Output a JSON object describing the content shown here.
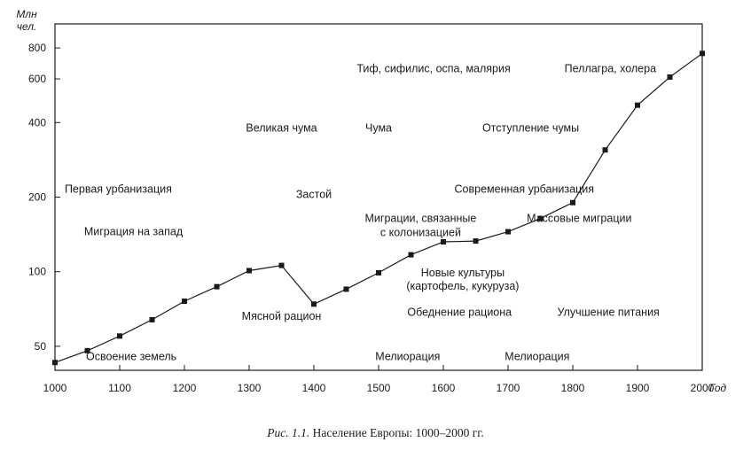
{
  "chart_data": {
    "type": "line",
    "title": "",
    "caption": {
      "label": "Рис. 1.1.",
      "text": "Население Европы: 1000–2000 гг."
    },
    "ylabel": "Млн\nчел.",
    "xlabel": "Год",
    "y_scale": "log",
    "xlim": [
      1000,
      2000
    ],
    "ylim": [
      40,
      1000
    ],
    "x_ticks": [
      1000,
      1100,
      1200,
      1300,
      1400,
      1500,
      1600,
      1700,
      1800,
      1900,
      2000
    ],
    "y_ticks": [
      50,
      100,
      200,
      400,
      600,
      800
    ],
    "grid": false,
    "legend": "none",
    "series": [
      {
        "x": [
          1000,
          1050,
          1100,
          1150,
          1200,
          1250,
          1300,
          1350,
          1400,
          1450,
          1500,
          1550,
          1600,
          1650,
          1700,
          1750,
          1800,
          1850,
          1900,
          1950,
          2000
        ],
        "y": [
          43,
          48,
          55,
          64,
          76,
          87,
          101,
          106,
          74,
          85,
          99,
          117,
          132,
          133,
          145,
          164,
          190,
          310,
          470,
          610,
          760
        ]
      }
    ],
    "annotations": [
      {
        "text": "Первая урбанизация",
        "x": 1015,
        "y": 215,
        "anchor": "start"
      },
      {
        "text": "Миграция на запад",
        "x": 1045,
        "y": 145,
        "anchor": "start"
      },
      {
        "text": "Освоение земель",
        "x": 1048,
        "y": 45.5,
        "anchor": "start"
      },
      {
        "text": "Великая чума",
        "x": 1350,
        "y": 380,
        "anchor": "middle"
      },
      {
        "text": "Застой",
        "x": 1400,
        "y": 205,
        "anchor": "middle"
      },
      {
        "text": "Мясной рацион",
        "x": 1350,
        "y": 66,
        "anchor": "middle"
      },
      {
        "text": "Тиф, сифилис, оспа, малярия",
        "x": 1585,
        "y": 660,
        "anchor": "middle"
      },
      {
        "text": "Чума",
        "x": 1500,
        "y": 380,
        "anchor": "middle"
      },
      {
        "text": "Отступление чумы",
        "x": 1735,
        "y": 380,
        "anchor": "middle"
      },
      {
        "text": "Современная урбанизация",
        "x": 1725,
        "y": 215,
        "anchor": "middle"
      },
      {
        "text": "Миграции, связанные",
        "x": 1565,
        "y": 164,
        "anchor": "middle"
      },
      {
        "text": "с колонизацией",
        "x": 1565,
        "y": 144,
        "anchor": "middle"
      },
      {
        "text": "Массовые миграции",
        "x": 1810,
        "y": 164,
        "anchor": "middle"
      },
      {
        "text": "Пеллагра, холера",
        "x": 1858,
        "y": 660,
        "anchor": "middle"
      },
      {
        "text": "Новые культуры",
        "x": 1630,
        "y": 99,
        "anchor": "middle"
      },
      {
        "text": "(картофель, кукуруза)",
        "x": 1630,
        "y": 87.5,
        "anchor": "middle"
      },
      {
        "text": "Обеднение рациона",
        "x": 1625,
        "y": 68.5,
        "anchor": "middle"
      },
      {
        "text": "Улучшение питания",
        "x": 1855,
        "y": 68.5,
        "anchor": "middle"
      },
      {
        "text": "Мелиорация",
        "x": 1545,
        "y": 45.5,
        "anchor": "middle"
      },
      {
        "text": "Мелиорация",
        "x": 1745,
        "y": 45.5,
        "anchor": "middle"
      }
    ]
  }
}
